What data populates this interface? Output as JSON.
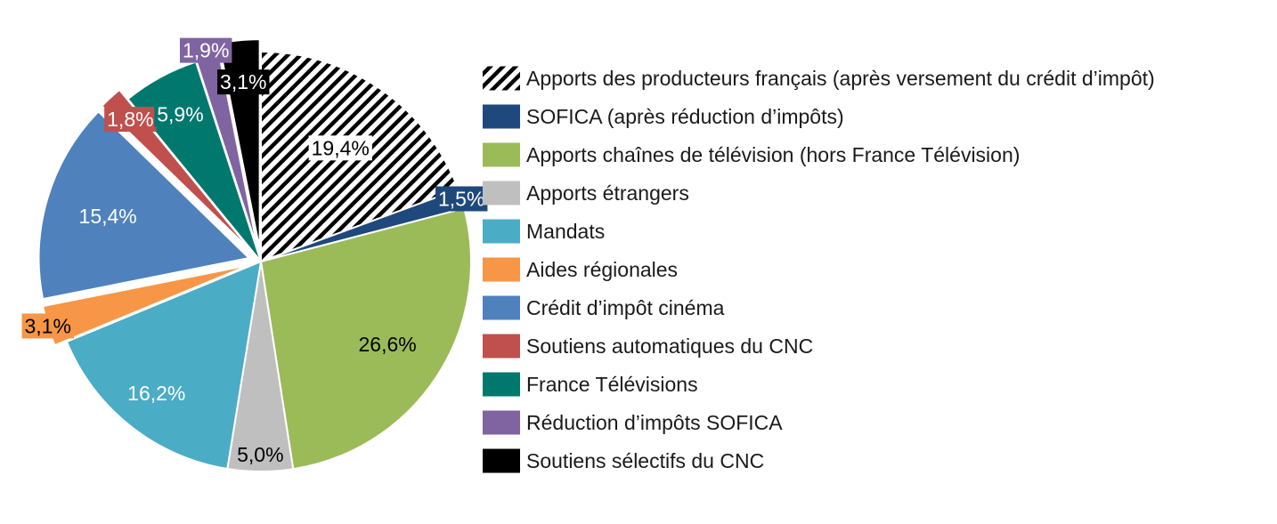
{
  "chart_data": {
    "type": "pie",
    "title": "",
    "unit": "%",
    "slices": [
      {
        "name": "Apports des producteurs français (après versement du crédit d’impôt)",
        "value": 19.4,
        "label": "19,4%",
        "color": "#000000",
        "pattern": "hatch",
        "label_color": "#000000",
        "label_box": "#ffffff"
      },
      {
        "name": "SOFICA (après réduction d’impôts)",
        "value": 1.5,
        "label": "1,5%",
        "color": "#1f497d",
        "label_color": "#ffffff",
        "label_box": "#1f497d"
      },
      {
        "name": "Apports chaînes de télévision (hors France Télévision)",
        "value": 26.6,
        "label": "26,6%",
        "color": "#9bbb59",
        "label_color": "#000000"
      },
      {
        "name": "Apports étrangers",
        "value": 5.0,
        "label": "5,0%",
        "color": "#bfbfbf",
        "label_color": "#000000"
      },
      {
        "name": "Mandats",
        "value": 16.2,
        "label": "16,2%",
        "color": "#4bacc6",
        "label_color": "#ffffff"
      },
      {
        "name": "Aides régionales",
        "value": 3.1,
        "label": "3,1%",
        "color": "#f79646",
        "label_color": "#000000",
        "label_box": "#f79646",
        "exploded": true
      },
      {
        "name": "Crédit d’impôt cinéma",
        "value": 15.4,
        "label": "15,4%",
        "color": "#4f81bd",
        "label_color": "#ffffff",
        "exploded": true
      },
      {
        "name": "Soutiens automatiques du CNC",
        "value": 1.8,
        "label": "1,8%",
        "color": "#c0504d",
        "label_color": "#ffffff",
        "label_box": "#c0504d",
        "exploded": true
      },
      {
        "name": "France Télévisions",
        "value": 5.9,
        "label": "5,9%",
        "color": "#00786e",
        "label_color": "#ffffff",
        "label_box": "#00786e"
      },
      {
        "name": "Réduction d’impôts SOFICA",
        "value": 1.9,
        "label": "1,9%",
        "color": "#8064a2",
        "label_color": "#ffffff",
        "label_box": "#8064a2",
        "exploded": true
      },
      {
        "name": "Soutiens sélectifs du CNC",
        "value": 3.1,
        "label": "3,1%",
        "color": "#000000",
        "label_color": "#ffffff",
        "label_box": "#000000",
        "exploded": true
      }
    ],
    "legend_position": "right"
  }
}
